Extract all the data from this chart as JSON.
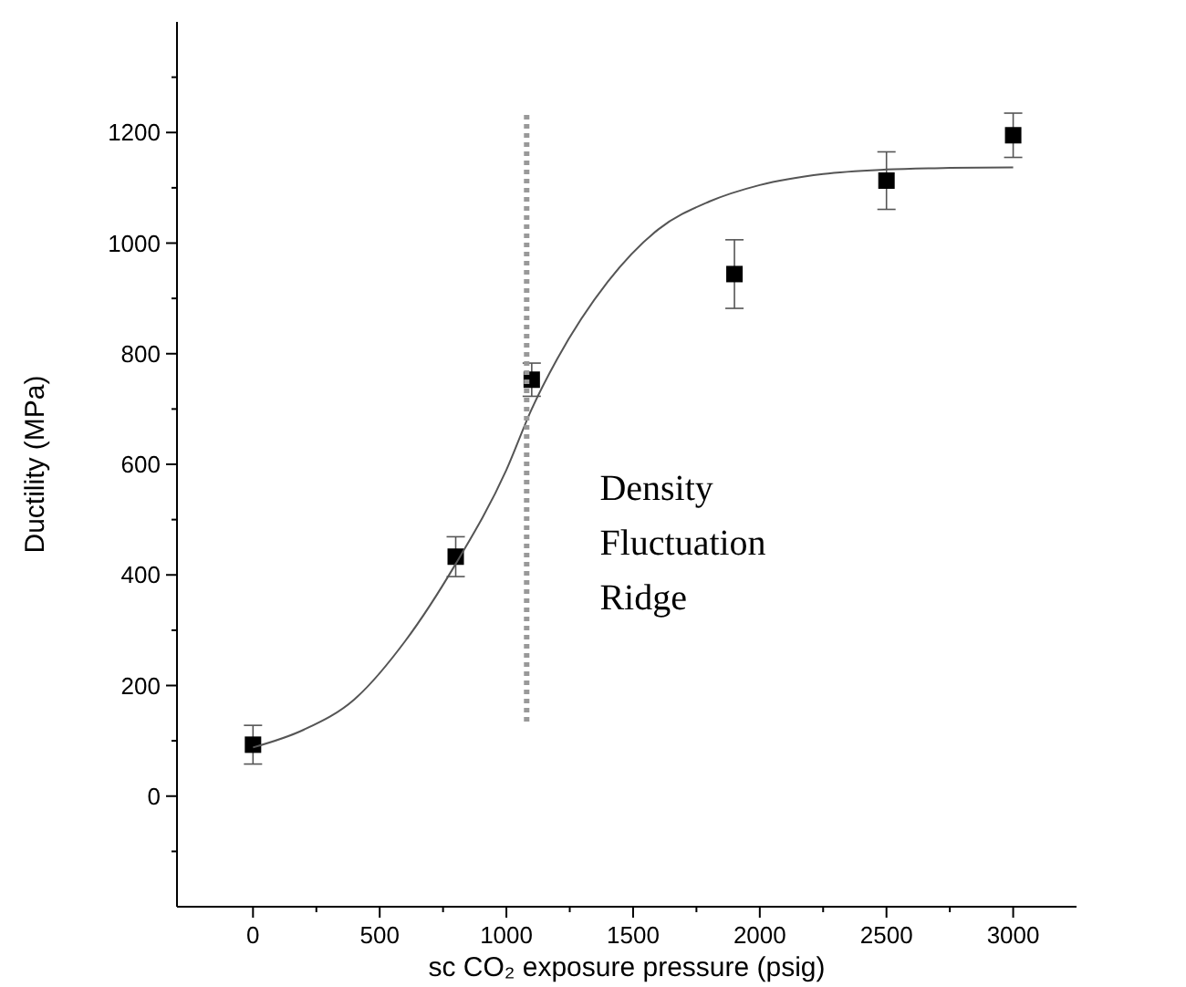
{
  "chart_data": {
    "type": "scatter",
    "xlabel": "sc CO₂ exposure pressure (psig)",
    "ylabel": "Ductility (MPa)",
    "xlim": [
      -300,
      3250
    ],
    "ylim": [
      -200,
      1400
    ],
    "xticks": [
      0,
      {
        "value": 250,
        "label": null
      },
      500,
      {
        "value": 750,
        "label": null
      },
      1000,
      {
        "value": 1250,
        "label": null
      },
      1500,
      {
        "value": 1750,
        "label": null
      },
      2000,
      {
        "value": 2250,
        "label": null
      },
      2500,
      {
        "value": 2750,
        "label": null
      },
      3000
    ],
    "yticks": [
      {
        "value": -100,
        "label": null
      },
      0,
      {
        "value": 100,
        "label": null
      },
      200,
      {
        "value": 300,
        "label": null
      },
      400,
      {
        "value": 500,
        "label": null
      },
      600,
      {
        "value": 700,
        "label": null
      },
      800,
      {
        "value": 900,
        "label": null
      },
      1000,
      {
        "value": 1100,
        "label": null
      },
      1200,
      {
        "value": 1300,
        "label": null
      }
    ],
    "grid": false,
    "series": [
      {
        "color": "#000000",
        "marker": "square",
        "x": [
          0,
          800,
          1100,
          1900,
          2500,
          3000
        ],
        "values": [
          93,
          433,
          753,
          944,
          1113,
          1195
        ],
        "errors": [
          35,
          36,
          30,
          62,
          52,
          40
        ]
      },
      {
        "type": "line",
        "color": "#555555",
        "marker": "none",
        "line_style": "solid",
        "x": [
          0,
          200,
          400,
          600,
          800,
          1000,
          1100,
          1200,
          1400,
          1600,
          1800,
          2000,
          2250,
          2500,
          2750,
          3000
        ],
        "values": [
          88,
          120,
          175,
          280,
          420,
          590,
          700,
          790,
          930,
          1025,
          1075,
          1105,
          1125,
          1133,
          1136,
          1137
        ]
      },
      {
        "type": "line",
        "color": "#999999",
        "marker": "none",
        "line_style": "dotted",
        "x": [
          1080,
          1080
        ],
        "values": [
          135,
          1235
        ]
      }
    ],
    "annotations": [
      "Density\nFluctuation\nRidge"
    ]
  }
}
